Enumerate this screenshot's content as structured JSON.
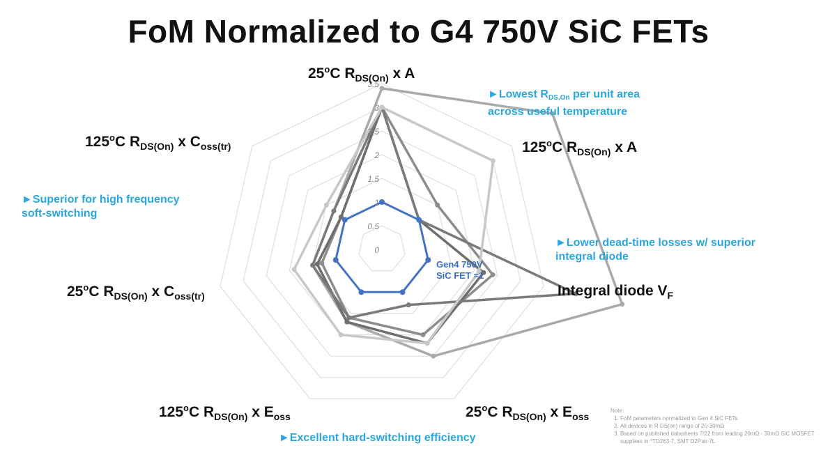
{
  "title": "FoM Normalized to G4 750V SiC FETs",
  "colors": {
    "gen4": "#4472c4",
    "grid": "#dedede",
    "callout": "#2aa7e0",
    "series_gray": [
      "#8c8c8c",
      "#a9a9a9",
      "#6e6e6e",
      "#7a7a7a",
      "#c8c8c8"
    ]
  },
  "axis_labels": {
    "a0": {
      "prefix": "25",
      "sup": "o",
      "mid": "C R",
      "sub": "DS(On)",
      "suffix": " x A"
    },
    "a1": {
      "prefix": "125",
      "sup": "o",
      "mid": "C R",
      "sub": "DS(On)",
      "suffix": " x A"
    },
    "a2": {
      "text": "Integral diode V",
      "sub": "F"
    },
    "a3": {
      "prefix": "25",
      "sup": "o",
      "mid": "C R",
      "sub": "DS(On)",
      "suffix": " x E",
      "sub2": "oss"
    },
    "a4": {
      "prefix": "125",
      "sup": "o",
      "mid": "C R",
      "sub": "DS(On)",
      "suffix": " x E",
      "sub2": "oss"
    },
    "a5": {
      "prefix": "25",
      "sup": "o",
      "mid": "C R",
      "sub": "DS(On)",
      "suffix": " x C",
      "sub2": "oss(tr)"
    },
    "a6": {
      "prefix": "125",
      "sup": "o",
      "mid": "C R",
      "sub": "DS(On)",
      "suffix": " x C",
      "sub2": "oss(tr)"
    }
  },
  "callouts": {
    "c1_line1a": "►Lowest R",
    "c1_sub": "DS,On",
    "c1_line1b": " per unit area",
    "c1_line2": "across useful temperature",
    "c2_line1": "►Lower dead-time losses w/ superior",
    "c2_line2": "integral diode",
    "c3_line1": "►Superior for high frequency",
    "c3_line2": "soft-switching",
    "c4": "►Excellent hard-switching efficiency"
  },
  "gen4_label": {
    "line1": "Gen4 750V",
    "line2": "SiC FET =1"
  },
  "note": {
    "heading": "Note:",
    "items": [
      "FoM parameters normalized to Gen 4 SiC FETs",
      "All devices in R DS(on) range of 20-30mΩ",
      "Based on published datasheets 7/22 from leading 20mΩ - 30mΩ SiC MOSFET suppliers in *TO263-7, SMT D2Pak-7L"
    ]
  },
  "chart_data": {
    "type": "radar",
    "title": "FoM Normalized to G4 750V SiC FETs",
    "axes": [
      "25°C RDS(On) x A",
      "125°C RDS(On) x A",
      "Integral diode VF",
      "25°C RDS(On) x Eoss",
      "125°C RDS(On) x Eoss",
      "25°C RDS(On) x Coss(tr)",
      "125°C RDS(On) x Coss(tr)"
    ],
    "rlim": [
      0,
      3.5
    ],
    "ticks": [
      0,
      0.5,
      1,
      1.5,
      2,
      2.5,
      3,
      3.5
    ],
    "tick_labels": [
      "0",
      "0.5",
      "1",
      "1.5",
      "2",
      "2.5",
      "3",
      "3.5"
    ],
    "series": [
      {
        "name": "Gen4 750V SiC FET =1",
        "values": [
          1,
          1,
          1,
          1,
          1,
          1,
          1
        ]
      },
      {
        "values": [
          3.0,
          1.5,
          2.4,
          2.0,
          1.6,
          1.3,
          1.1
        ]
      },
      {
        "values": [
          3.4,
          4.6,
          5.2,
          2.5,
          1.7,
          1.5,
          1.3
        ]
      },
      {
        "values": [
          3.0,
          1.0,
          2.2,
          2.2,
          1.7,
          1.4,
          1.1
        ]
      },
      {
        "values": [
          3.0,
          1.0,
          4.2,
          1.3,
          1.6,
          1.5,
          1.3
        ]
      },
      {
        "values": [
          3.0,
          3.0,
          2.1,
          2.2,
          2.0,
          1.9,
          1.5
        ]
      }
    ],
    "grid": true,
    "legend": "none"
  }
}
